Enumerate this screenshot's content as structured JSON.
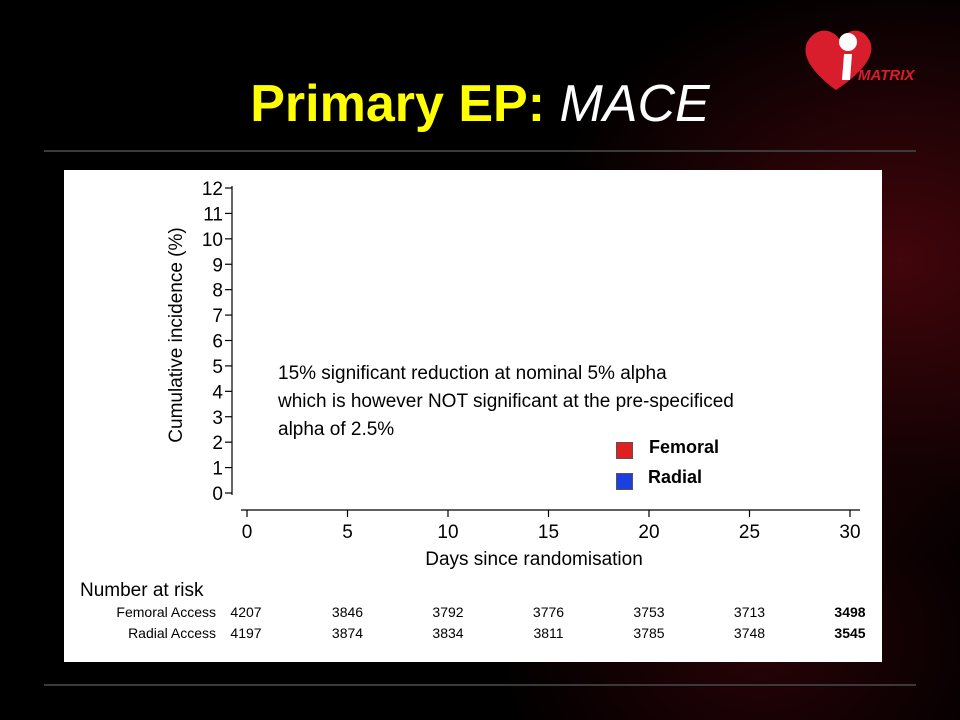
{
  "slide": {
    "title_main": "Primary EP:",
    "title_sub": "MACE",
    "logo_text": "MATRIX"
  },
  "annotation": {
    "line1": "15% significant reduction at nominal 5% alpha",
    "line2": "which is however NOT significant at the pre-specificed",
    "line3": "alpha of 2.5%"
  },
  "legend": [
    {
      "label": "Femoral",
      "color": "#e02020"
    },
    {
      "label": "Radial",
      "color": "#1e3fe0"
    }
  ],
  "chart_data": {
    "type": "line",
    "xlabel": "Days since randomisation",
    "ylabel": "Cumulative incidence (%)",
    "xlim": [
      0,
      30
    ],
    "ylim": [
      0,
      12
    ],
    "x_ticks": [
      0,
      5,
      10,
      15,
      20,
      25,
      30
    ],
    "y_ticks": [
      0,
      1,
      2,
      3,
      4,
      5,
      6,
      7,
      8,
      9,
      10,
      11,
      12
    ],
    "grid": false,
    "legend_position": "bottom-right",
    "series": [
      {
        "name": "Femoral",
        "values": []
      },
      {
        "name": "Radial",
        "values": []
      }
    ],
    "number_at_risk": {
      "title": "Number at risk",
      "timepoints": [
        0,
        5,
        10,
        15,
        20,
        25,
        30
      ],
      "rows": [
        {
          "label": "Femoral Access",
          "values": [
            4207,
            3846,
            3792,
            3776,
            3753,
            3713,
            3498
          ]
        },
        {
          "label": "Radial Access",
          "values": [
            4197,
            3874,
            3834,
            3811,
            3785,
            3748,
            3545
          ]
        }
      ]
    }
  }
}
